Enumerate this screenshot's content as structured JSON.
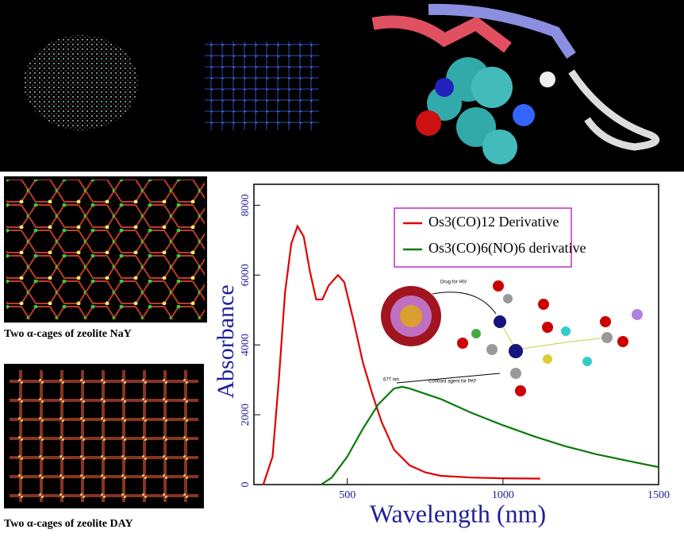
{
  "captions": [
    "Two  α-cages of zeolite NaY",
    "Two  α-cages of zeolite DAY"
  ],
  "chart_data": {
    "type": "line",
    "x_label": "Wavelength (nm)",
    "y_label": "Absorbance",
    "xlim": [
      200,
      1500
    ],
    "xticks": [
      500,
      1000,
      1500
    ],
    "ylim": [
      0,
      8600
    ],
    "yticks": [
      0,
      2000,
      4000,
      6000,
      8000
    ],
    "annotations": [
      "Drug for HIV",
      "677 nm",
      "Contrast agent for PAT"
    ],
    "series": [
      {
        "name": "Os3(CO)12 Derivative",
        "color": "#e00000",
        "x": [
          230,
          260,
          280,
          300,
          320,
          340,
          360,
          380,
          400,
          420,
          440,
          470,
          490,
          520,
          550,
          580,
          610,
          650,
          700,
          750,
          800,
          900,
          1000,
          1120
        ],
        "values": [
          0,
          800,
          3000,
          5500,
          6900,
          7400,
          7100,
          6100,
          5300,
          5300,
          5700,
          6000,
          5800,
          4700,
          3500,
          2600,
          1800,
          1000,
          550,
          350,
          250,
          200,
          180,
          170
        ]
      },
      {
        "name": "Os3(CO)6(NO)6 derivative",
        "color": "#0a7a0a",
        "x": [
          416,
          450,
          500,
          550,
          600,
          650,
          677,
          700,
          800,
          900,
          1000,
          1100,
          1200,
          1300,
          1400,
          1500
        ],
        "values": [
          0,
          200,
          800,
          1600,
          2300,
          2750,
          2800,
          2750,
          2450,
          2050,
          1700,
          1380,
          1100,
          870,
          680,
          500
        ]
      }
    ]
  }
}
